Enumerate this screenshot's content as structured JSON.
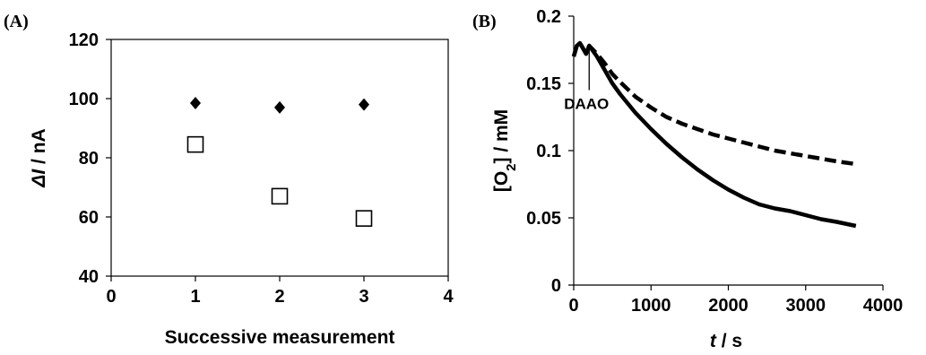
{
  "chart_data": [
    {
      "type": "scatter",
      "panel_label": "(A)",
      "xlabel": "Successive measurement",
      "ylabel_italic": "ΔI",
      "ylabel_rest": " / nA",
      "xlim": [
        0,
        4
      ],
      "ylim": [
        40,
        120
      ],
      "xticks": [
        "0",
        "1",
        "2",
        "3",
        "4"
      ],
      "yticks": [
        "40",
        "60",
        "80",
        "100",
        "120"
      ],
      "grid": false,
      "series": [
        {
          "marker": "diamond-filled",
          "x": [
            1,
            2,
            3
          ],
          "y": [
            98.5,
            97,
            98
          ]
        },
        {
          "marker": "square-open",
          "x": [
            1,
            2,
            3
          ],
          "y": [
            84.5,
            67,
            59.5
          ]
        }
      ]
    },
    {
      "type": "line",
      "panel_label": "(B)",
      "xlabel_italic": "t",
      "xlabel_rest": " / s",
      "ylabel_main": "[O",
      "ylabel_sub": "2",
      "ylabel_rest": "] / mM",
      "xlim": [
        0,
        4000
      ],
      "ylim": [
        0,
        0.2
      ],
      "xticks": [
        "0",
        "1000",
        "2000",
        "3000",
        "4000"
      ],
      "yticks": [
        "0",
        "0.05",
        "0.1",
        "0.15",
        "0.2"
      ],
      "grid": false,
      "annotation": {
        "text": "DAAO",
        "x": 200,
        "y_top": 0.177,
        "y_bottom": 0.145
      },
      "series": [
        {
          "style": "solid",
          "x": [
            0,
            40,
            80,
            120,
            160,
            200,
            250,
            300,
            400,
            500,
            600,
            800,
            1000,
            1200,
            1400,
            1600,
            1800,
            2000,
            2200,
            2400,
            2600,
            2800,
            3000,
            3200,
            3400,
            3650
          ],
          "y": [
            0.17,
            0.178,
            0.18,
            0.176,
            0.172,
            0.178,
            0.174,
            0.17,
            0.16,
            0.15,
            0.142,
            0.128,
            0.116,
            0.105,
            0.095,
            0.086,
            0.078,
            0.071,
            0.065,
            0.06,
            0.057,
            0.055,
            0.052,
            0.049,
            0.047,
            0.044
          ]
        },
        {
          "style": "dashed",
          "x": [
            0,
            40,
            80,
            120,
            160,
            200,
            250,
            300,
            400,
            500,
            600,
            800,
            1000,
            1200,
            1400,
            1600,
            1800,
            2000,
            2200,
            2400,
            2600,
            2800,
            3000,
            3200,
            3400,
            3650
          ],
          "y": [
            0.17,
            0.178,
            0.18,
            0.176,
            0.172,
            0.178,
            0.175,
            0.172,
            0.165,
            0.157,
            0.151,
            0.14,
            0.132,
            0.125,
            0.12,
            0.116,
            0.112,
            0.109,
            0.106,
            0.103,
            0.1,
            0.098,
            0.096,
            0.094,
            0.092,
            0.09
          ]
        }
      ]
    }
  ]
}
